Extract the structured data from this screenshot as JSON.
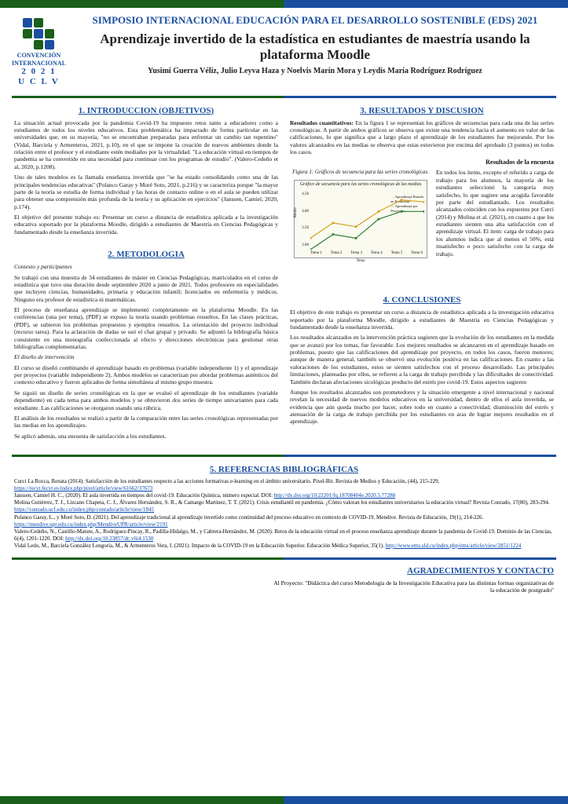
{
  "header": {
    "conference": "SIMPOSIO INTERNACIONAL EDUCACIÓN PARA EL DESARROLLO SOSTENIBLE (EDS) 2021",
    "title": "Aprendizaje invertido de la estadística en estudiantes de maestría usando la plataforma Moodle",
    "authors": "Yusimí Guerra Véliz, Julio Leyva Haza y Noelvis Marín Mora y Leydis María Rodríguez Rodríguez",
    "logo_line1": "CONVENCIÓN",
    "logo_line2": "INTERNACIONAL",
    "logo_line3": "2 0 2 1",
    "logo_line4": "U C L V"
  },
  "logo_colors": [
    "#1a4f9f",
    "#1a5f1a",
    "",
    "#1a5f1a",
    "#1a4f9f",
    "#1a5f1a",
    "",
    "#1a5f1a",
    "#1a4f9f"
  ],
  "sections": {
    "intro": {
      "title": "1. INTRODUCCION (OBJETIVOS)",
      "p1": "La situación actual provocada por la pandemia Covid-19 ha impuesto retos tanto a educadores como a estudiantes de todos los niveles educativos. Esta problemática ha impactado de forma particular en las universidades que, en su mayoría, \"no se encontraban preparadas para enfrentar un cambio tan repentino\" (Vidal, Barciela y Armenteros, 2021, p.10), en el que se impone la creación de nuevos ambientes donde la relación entre el profesor y el estudiante estén mediados por la virtualidad. \"La educación virtual en tiempos de pandemia se ha convertido en una necesidad para continuar con los programas de estudio\". (Valero-Cedeño et al, 2020, p.1208).",
      "p2": "Uno de tales modelos es la llamada enseñanza invertida que \"se ha estado consolidando como una de las principales tendencias educativas\" (Polanco Garay y Moré Soto, 2021, p.216) y se caracteriza porque \"la mayor parte de la teoría se estudia de forma individual y las horas de contacto online o en el aula se pueden utilizar para obtener una comprensión más profunda de la teoría y su aplicación en ejercicios\" (Janssen, Camiel, 2020, p.174).",
      "p3": "El objetivo del presente trabajo es: Presentar un curso a distancia de estadística aplicada a la investigación educativa soportado por la plataforma Moodle, dirigido a estudiantes de Maestría en Ciencias Pedagógicas y fundamentado desde la enseñanza invertida."
    },
    "method": {
      "title": "2. METODOLOGIA",
      "sub1": "Contexto y participantes",
      "p1": "Se trabajó con una muestra de 34 estudiantes de máster en Ciencias Pedagógicas, matriculados en el curso de estadística que tuvo una duración desde septiembre 2020 a junio de 2021. Todos profesores en especialidades que incluyen ciencias, humanidades, primaria y educación infantil; licenciados en enfermería y médicos. Ninguno era profesor de estadística ni matemáticas.",
      "p2": "El proceso de enseñanza aprendizaje se implementó completamente en la plataforma Moodle. En las conferencias (una por tema), (PDF) se expuso la teoría usando problemas resueltos. En las clases prácticas, (PDF), se subieron los problemas propuestos y ejemplos resueltos. La orientación del proyecto individual (recurso tarea). Para la aclaración de dudas se usó el chat grupal y privado. Se adjuntó la bibliografía básica consistente en una monografía confeccionada al efecto y direcciones electrónicas para gestionar otras bibliografías complementarias.",
      "sub2": "El diseño de intervención",
      "p3": "El curso se diseñó combinando el aprendizaje basado en problemas (variable independiente 1) y el aprendizaje por proyectos (variable independiente 2). Ambos modelos se caracterizan por abordar problemas auténticos del contexto educativo y fueron aplicados de forma simultánea al mismo grupo muestra.",
      "p4": "Se siguió un diseño de series cronológicas en la que se evaluó el aprendizaje de los estudiantes (variable dependiente) en cada tema para ambos modelos y se obtuvieron dos series de tiempo univariantes para cada estudiante. Las calificaciones se otorgaron usando una rúbrica.",
      "p5": "El análisis de los resultados se realizó a partir de la comparación entre las series cronológicas representadas por las medias en los aprendizajes.",
      "p6": "Se aplicó además, una encuesta de satisfacción a los estudiantes."
    },
    "results": {
      "title": "3. RESULTADOS Y DISCUSION",
      "p1_label": "Resultados cuantitativos:",
      "p1": " En la figura 1 se representan los gráficos de secuencias para cada una de las series cronológicas. A partir de ambos gráficos se observa que existe una tendencia hacia el aumento en valor de las calificaciones, lo que significa que a largo plazo el aprendizaje de los estudiantes fue mejorando. Por los valores alcanzados en las medias se observa que estas estuvieron por encima del aprobado (3 puntos) en todos los casos.",
      "survey_heading": "Resultados de la encuesta",
      "figure_caption": "Figura 1: Gráficos de secuencia para las series cronológicas.",
      "p2": "En todos los ítems, excepto el referido a carga de trabajo para los alumnos, la mayoría de los estudiantes seleccionó la categoría muy satisfecho, lo que sugiere una acogida favorable por parte del estudiantado. Los resultados alcanzados coinciden con los expuestos por Curci (2014) y Molina et al. (2021), en cuanto a que los estudiantes sienten una alta satisfacción con el aprendizaje virtual. El ítem: carga de trabajo para los alumnos indica que al menos el 50%, está insatisfecho o poco satisfecho con la carga de trabajo."
    },
    "conclusions": {
      "title": "4. CONCLUSIONES",
      "p1": "El objetivo de este trabajo es presentar un curso a distancia de estadística aplicada a la investigación educativa soportado por la plataforma Moodle, dirigido a estudiantes de Maestría en Ciencias Pedagógicas y fundamentado desde la enseñanza invertida.",
      "p2": "Los resultados alcanzados en la intervención práctica sugieren que la evolución de los estudiantes en la medida que se avanzó por los temas, fue favorable. Los mejores resultados se alcanzaron en el aprendizaje basado en problemas, puesto que las calificaciones del aprendizaje por proyecto, en todos los casos, fueron menores; aunque de manera general, también se observó una evolución positiva en las calificaciones. En cuanto a las valoraciones de los estudiantes, estos se sienten satisfechos con el proceso desarrollado. Las principales limitaciones, planteadas por ellos, se refieren a la carga de trabajo percibida y las dificultades de conectividad. También declaran afectaciones sicológicas producto del estrés por covid-19. Estos aspectos sugieren",
      "p3": "Aunque los resultados alcanzados son prometedores y la situación emergente a nivel internacional y nacional revelan la necesidad de nuevos modelos educativos en la universidad, dentro de ellos el aula invertida, se evidencia que aún queda mucho por hacer, sobre todo en cuanto a conectividad, disminución del estrés y atenuación de la carga de trabajo percibida por los estudiantes en aras de lograr mejores resultados en el aprendizaje."
    },
    "references": {
      "title": "5. REFERENCIAS BIBLIOGRÁFICAS",
      "r1": "Curci La Rocca, Renata (2014). Satisfacción de los estudiantes respecto a las acciones formativas e-learning en el ámbito universitario. Pixel-Bit. Revista de Medios y Educación, (44), 215-229.",
      "r1_link": "https://recyt.fecyt.es/index.php/pixel/article/view/61662/37673",
      "r2": "Janssen, Camiel H. C., (2020). El aula invertida en tiempos del covid-19. Educación Química, número especial. DOI: ",
      "r2_link": "http://dx.doi.org/10.22201/fq.18708404e.2020.5.77288",
      "r3": "Molina Gutiérrez, T. J., Lizcano Chapeta, C. J., Álvarez Hernández, S. R., & Camargo Martínez, T. T. (2021). Crisis estudiantil en pandemia. ¿Cómo valoran los estudiantes universitarios la educación virtual? Revista Conrado, 17(80), 283-294. ",
      "r3_link": "https://conrado.ucf.edu.cu/index.php/conrado/article/view/1845",
      "r4": "Polanco Garay, L., y Moré Soto, D. (2021). Del aprendizaje tradicional al aprendizaje invertido como continuidad del proceso educativo en contexto de COVID-19. Mendive. Revista de Educación, 19(1), 214-226. ",
      "r4_link": "https://mendive.upr.edu.cu/index.php/MendiveUPR/article/view/2191",
      "r5": "Valero-Cedeño, N., Castillo-Matute, A., Rodríguez-Pincay, R., Padilla-Hidalgo, M., y Cabrera-Hernández, M. (2020). Retos de la educación virtual en el proceso enseñanza aprendizaje durante la pandemia de Covid-19. Dominio de las Ciencias, 6(4), 1201-1220. DOI: ",
      "r5_link": "http://dx.doi.org/10.23857/dc.v6i4.1530",
      "r6": "Vidal Ledo, M., Barciela González Longoria, M., & Armenteros Vera, I. (2021). Impacto de la COVID-19 en la Educación Superior. Educación Médica Superior, 35(1).",
      "r6_link": "http://www.ems.sld.cu/index.php/ems/article/view/2851/1224"
    },
    "thanks": {
      "title": "AGRADECIMIENTOS Y CONTACTO",
      "text": "Al Proyecto: \"Didáctica del curso Metodología de la Investigación Educativa para las distintas formas organizativas de la educación de postgrado\""
    }
  },
  "chart": {
    "type": "line",
    "inner_title": "Gráfico de secuencia para las series cronológicas de las medias",
    "series": [
      {
        "name": "Aprendizaje Basado en Problemas",
        "color": "#d4a017",
        "values": [
          3.3,
          3.7,
          3.6,
          4.0,
          4.3,
          4.25
        ]
      },
      {
        "name": "Aprendizaje por Proyectos",
        "color": "#2e7d32",
        "values": [
          3.0,
          3.4,
          3.3,
          3.8,
          4.0,
          4.0
        ]
      }
    ],
    "x_labels": [
      "Tema 1",
      "Tema 2",
      "Tema 3",
      "Tema 4",
      "Tema 5",
      "Tema 6"
    ],
    "x_label": "Tema",
    "y_label": "Media",
    "y_ticks": [
      "4.50",
      "4.00",
      "3.50",
      "3.00"
    ],
    "ylim": [
      3.0,
      4.5
    ],
    "background_color": "#fafaf0",
    "line_width": 1.2
  }
}
